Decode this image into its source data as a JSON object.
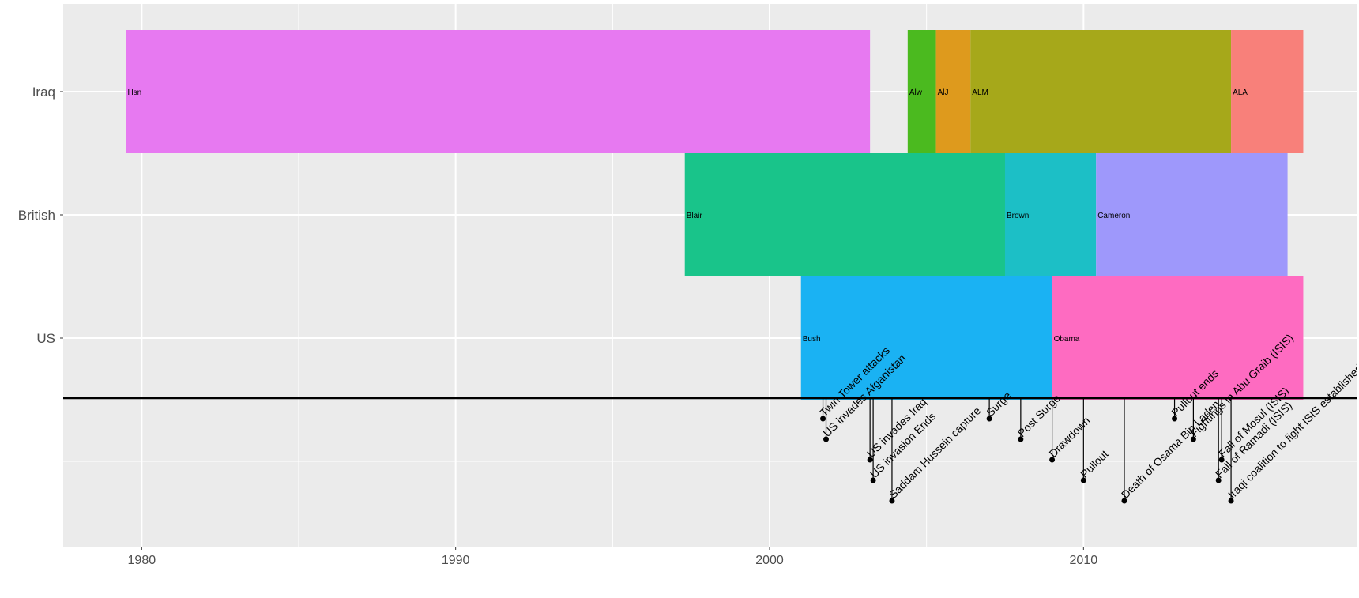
{
  "chart_data": {
    "type": "timeline",
    "title": "",
    "xlabel": "",
    "ylabel": "",
    "xlim": [
      1977.5,
      2018.7
    ],
    "x_ticks": [
      1980,
      1990,
      2000,
      2010
    ],
    "grid": true,
    "legend": "none",
    "rows": [
      "Iraq",
      "British",
      "US"
    ],
    "periods": [
      {
        "row": "Iraq",
        "label": "Hsn",
        "start": 1979.5,
        "end": 2003.2,
        "color": "#e779f1"
      },
      {
        "row": "Iraq",
        "label": "Alw",
        "start": 2004.4,
        "end": 2005.3,
        "color": "#4bba1f"
      },
      {
        "row": "Iraq",
        "label": "AlJ",
        "start": 2005.3,
        "end": 2006.4,
        "color": "#de9a1d"
      },
      {
        "row": "Iraq",
        "label": "ALM",
        "start": 2006.4,
        "end": 2014.7,
        "color": "#a6a81a"
      },
      {
        "row": "Iraq",
        "label": "ALA",
        "start": 2014.7,
        "end": 2017.0,
        "color": "#f8807a"
      },
      {
        "row": "British",
        "label": "Blair",
        "start": 1997.3,
        "end": 2007.5,
        "color": "#19c48a"
      },
      {
        "row": "British",
        "label": "Brown",
        "start": 2007.5,
        "end": 2010.4,
        "color": "#1cbfc6"
      },
      {
        "row": "British",
        "label": "Cameron",
        "start": 2010.4,
        "end": 2016.5,
        "color": "#9e98fb"
      },
      {
        "row": "US",
        "label": "Bush",
        "start": 2001.0,
        "end": 2009.0,
        "color": "#1ab2f3"
      },
      {
        "row": "US",
        "label": "Obama",
        "start": 2009.0,
        "end": 2017.0,
        "color": "#fe6bc1"
      }
    ],
    "events": [
      {
        "label": "Twin Tower attacks",
        "date": 2001.7,
        "level": 1
      },
      {
        "label": "US invades Afganistan",
        "date": 2001.8,
        "level": 2
      },
      {
        "label": "US invades Iraq",
        "date": 2003.2,
        "level": 3
      },
      {
        "label": "US invasion Ends",
        "date": 2003.3,
        "level": 4
      },
      {
        "label": "Saddam Hussein capture",
        "date": 2003.9,
        "level": 5
      },
      {
        "label": "Surge",
        "date": 2007.0,
        "level": 1
      },
      {
        "label": "Post Surge",
        "date": 2008.0,
        "level": 2
      },
      {
        "label": "Drawdown",
        "date": 2009.0,
        "level": 3
      },
      {
        "label": "Pullout",
        "date": 2010.0,
        "level": 4
      },
      {
        "label": "Death of Osama Bin Laden",
        "date": 2011.3,
        "level": 5
      },
      {
        "label": "Pullout ends",
        "date": 2012.9,
        "level": 1
      },
      {
        "label": "Fightings in Abu Graib (ISIS)",
        "date": 2013.5,
        "level": 2
      },
      {
        "label": "Fall of Mosul (ISIS)",
        "date": 2014.4,
        "level": 3
      },
      {
        "label": "Fall of Ramadi (ISIS)",
        "date": 2014.3,
        "level": 4
      },
      {
        "label": "Iraqi coalition to fight ISIS established",
        "date": 2014.7,
        "level": 5
      }
    ]
  }
}
